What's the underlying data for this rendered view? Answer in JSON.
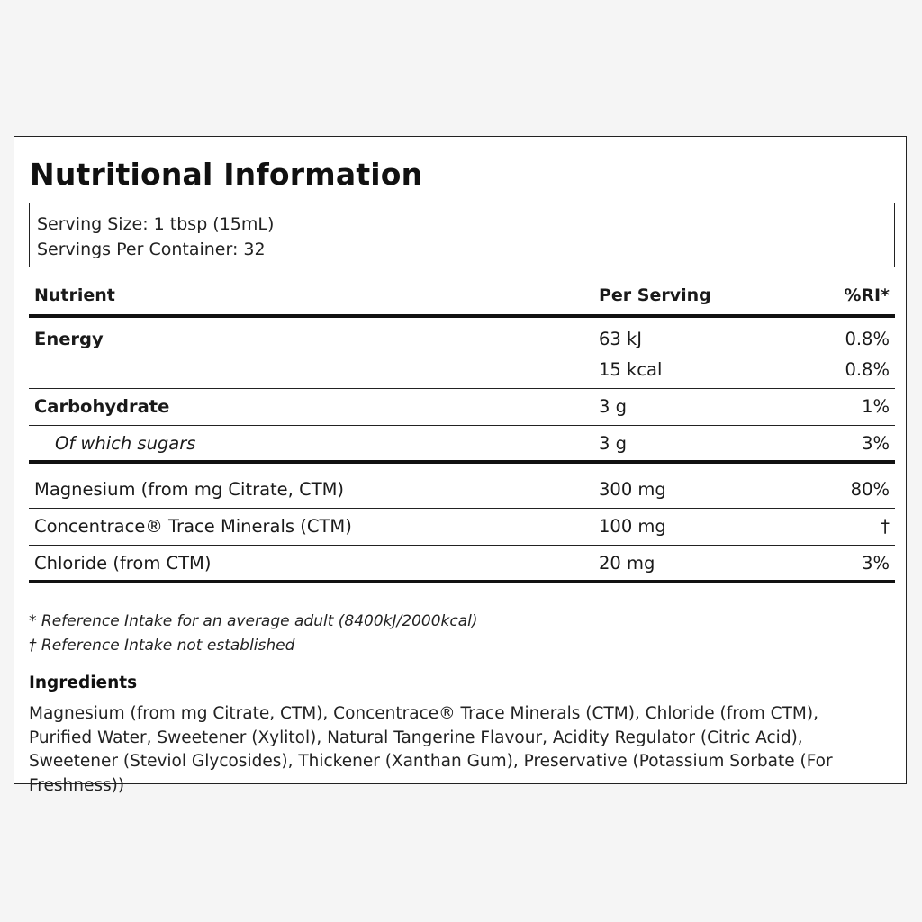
{
  "title": "Nutritional Information",
  "serving": {
    "size": "Serving Size: 1 tbsp (15mL)",
    "per_container": "Servings Per Container: 32"
  },
  "table": {
    "headers": [
      "Nutrient",
      "Per Serving",
      "%RI*"
    ],
    "rows": [
      {
        "nutrient": "Energy",
        "per_serving": "63 kJ",
        "ri": "0.8%"
      },
      {
        "nutrient": "",
        "per_serving": "15 kcal",
        "ri": "0.8%"
      },
      {
        "nutrient": "Carbohydrate",
        "per_serving": "3 g",
        "ri": "1%"
      },
      {
        "nutrient": "Of which sugars",
        "per_serving": "3 g",
        "ri": "3%"
      },
      {
        "nutrient": "Magnesium (from mg Citrate, CTM)",
        "per_serving": "300 mg",
        "ri": "80%"
      },
      {
        "nutrient": "Concentrace® Trace Minerals (CTM)",
        "per_serving": "100 mg",
        "ri": "†"
      },
      {
        "nutrient": "Chloride (from CTM)",
        "per_serving": "20 mg",
        "ri": "3%"
      }
    ]
  },
  "footnotes": {
    "ri": "* Reference Intake for an average adult (8400kJ/2000kcal)",
    "not_established": "† Reference Intake not established"
  },
  "ingredients": {
    "heading": "Ingredients",
    "text": "Magnesium (from mg Citrate, CTM), Concentrace® Trace Minerals (CTM), Chloride (from CTM), Purified Water, Sweetener (Xylitol), Natural Tangerine Flavour, Acidity Regulator (Citric Acid), Sweetener (Steviol Glycosides), Thickener (Xanthan Gum), Preservative (Potassium Sorbate (For Freshness))"
  }
}
